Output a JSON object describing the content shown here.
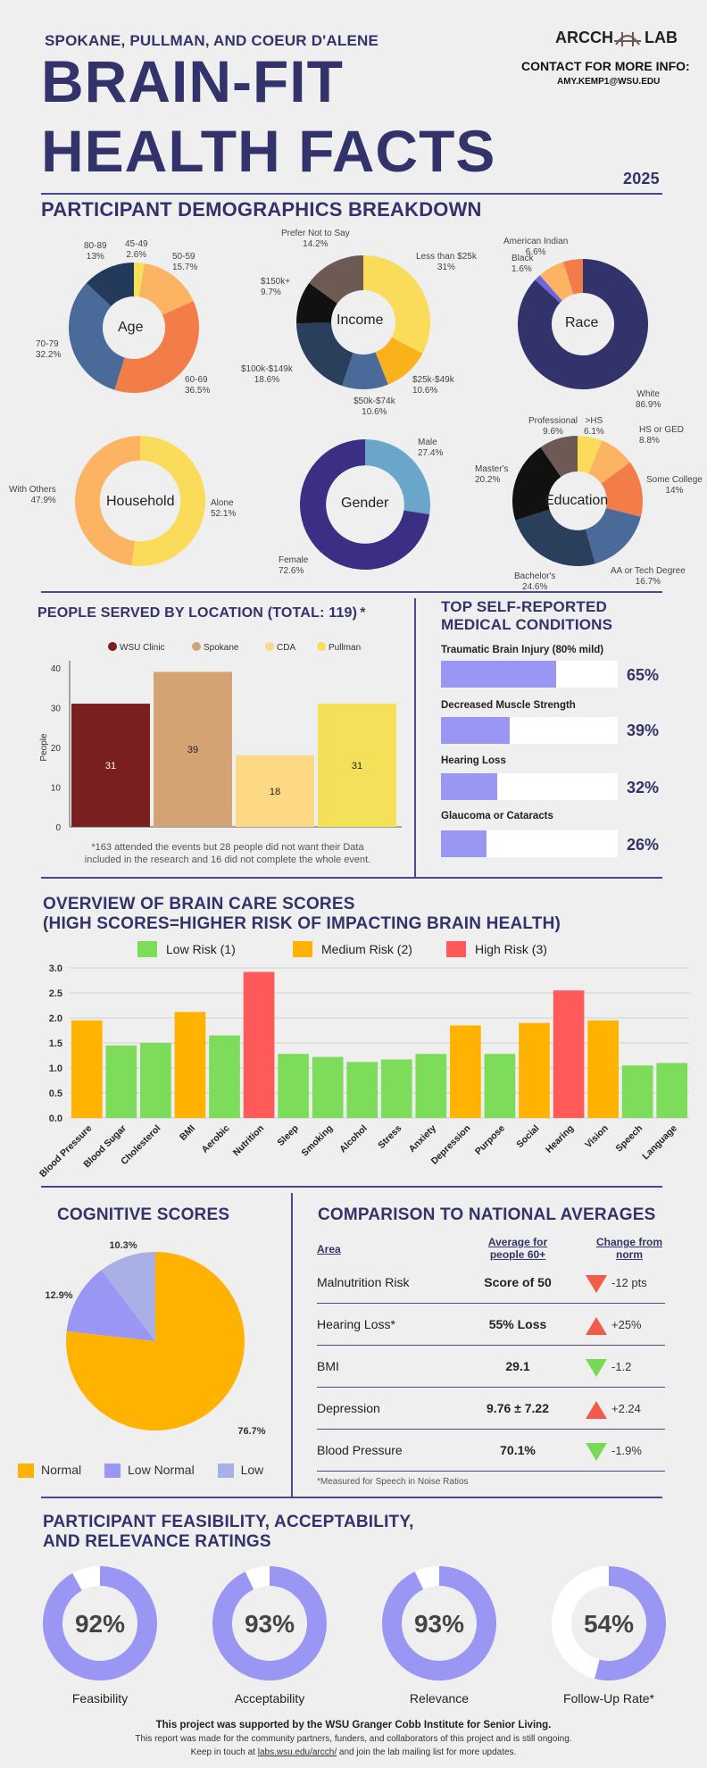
{
  "header": {
    "location": "SPOKANE, PULLMAN, AND COEUR D'ALENE",
    "title_line1": "BRAIN-FIT",
    "title_line2": "HEALTH FACTS",
    "year": "2025",
    "logo_left": "ARCCH",
    "logo_right": "LAB",
    "contact_label": "CONTACT FOR MORE INFO:",
    "contact_email": "AMY.KEMP1@WSU.EDU"
  },
  "demographics": {
    "title": "PARTICIPANT DEMOGRAPHICS BREAKDOWN",
    "age": {
      "center": "Age",
      "slices": [
        {
          "label": "45-49",
          "pct": "2.6%",
          "value": 2.6,
          "color": "#f5e05a"
        },
        {
          "label": "50-59",
          "pct": "15.7%",
          "value": 15.7,
          "color": "#fdb462"
        },
        {
          "label": "60-69",
          "pct": "36.5%",
          "value": 36.5,
          "color": "#f27d48"
        },
        {
          "label": "70-79",
          "pct": "32.2%",
          "value": 32.2,
          "color": "#4a6b99"
        },
        {
          "label": "80-89",
          "pct": "13%",
          "value": 13,
          "color": "#243a5a"
        }
      ]
    },
    "income": {
      "center": "Income",
      "slices": [
        {
          "label": "Less than $25k",
          "pct": "31%",
          "value": 31,
          "color": "#fbdc5a"
        },
        {
          "label": "$25k-$49k",
          "pct": "10.6%",
          "value": 10.6,
          "color": "#f9b21c"
        },
        {
          "label": "$50k-$74k",
          "pct": "10.6%",
          "value": 10.6,
          "color": "#4a6b99"
        },
        {
          "label": "$100k-$149k",
          "pct": "18.6%",
          "value": 18.6,
          "color": "#2a3f5c"
        },
        {
          "label": "$150k+",
          "pct": "9.7%",
          "value": 9.7,
          "color": "#111111"
        },
        {
          "label": "Prefer Not to Say",
          "pct": "14.2%",
          "value": 14.2,
          "color": "#6e5a55"
        }
      ]
    },
    "race": {
      "center": "Race",
      "slices": [
        {
          "label": "White",
          "pct": "86.9%",
          "value": 86.9,
          "color": "#33336b"
        },
        {
          "label": "Black",
          "pct": "1.6%",
          "value": 1.6,
          "color": "#6b66e0"
        },
        {
          "label": "American Indian",
          "pct": "6.6%",
          "value": 6.6,
          "color": "#fdb462"
        },
        {
          "label": "",
          "pct": "",
          "value": 4.9,
          "color": "#f27d48"
        }
      ]
    },
    "household": {
      "center": "Household",
      "slices": [
        {
          "label": "Alone",
          "pct": "52.1%",
          "value": 52.1,
          "color": "#fbdc5a"
        },
        {
          "label": "With Others",
          "pct": "47.9%",
          "value": 47.9,
          "color": "#fdb462"
        }
      ]
    },
    "gender": {
      "center": "Gender",
      "slices": [
        {
          "label": "Male",
          "pct": "27.4%",
          "value": 27.4,
          "color": "#6aa6c9"
        },
        {
          "label": "Female",
          "pct": "72.6%",
          "value": 72.6,
          "color": "#3a2f85"
        }
      ]
    },
    "education": {
      "center": "Education",
      "slices": [
        {
          "label": ">HS",
          "pct": "6.1%",
          "value": 6.1,
          "color": "#fbdc5a"
        },
        {
          "label": "HS or GED",
          "pct": "8.8%",
          "value": 8.8,
          "color": "#fdb462"
        },
        {
          "label": "Some College",
          "pct": "14%",
          "value": 14,
          "color": "#f27d48"
        },
        {
          "label": "AA or Tech Degree",
          "pct": "16.7%",
          "value": 16.7,
          "color": "#4a6b99"
        },
        {
          "label": "Bachelor's",
          "pct": "24.6%",
          "value": 24.6,
          "color": "#2a3f5c"
        },
        {
          "label": "Master's",
          "pct": "20.2%",
          "value": 20.2,
          "color": "#111111"
        },
        {
          "label": "Professional",
          "pct": "9.6%",
          "value": 9.6,
          "color": "#6e5a55"
        }
      ]
    }
  },
  "location_chart": {
    "title": "PEOPLE SERVED BY LOCATION (TOTAL: 119)",
    "title_mark": "*",
    "note_line1": "*163 attended the events but 28 people did not want their Data",
    "note_line2": "included in the research and 16 did not complete the whole event."
  },
  "conditions": {
    "title_line1": "TOP SELF-REPORTED",
    "title_line2": "MEDICAL CONDITIONS",
    "items": [
      {
        "name": "Traumatic Brain Injury (80% mild)",
        "pct": "65%",
        "value": 0.65
      },
      {
        "name": "Decreased Muscle Strength",
        "pct": "39%",
        "value": 0.39
      },
      {
        "name": "Hearing Loss",
        "pct": "32%",
        "value": 0.32
      },
      {
        "name": "Glaucoma or Cataracts",
        "pct": "26%",
        "value": 0.26
      }
    ]
  },
  "brain_care": {
    "title_line1": "OVERVIEW OF BRAIN CARE SCORES",
    "title_line2": "(HIGH SCORES=HIGHER RISK OF IMPACTING BRAIN HEALTH)"
  },
  "cognitive": {
    "title": "COGNITIVE SCORES",
    "legend": [
      "Normal",
      "Low Normal",
      "Low"
    ]
  },
  "comparison": {
    "title": "COMPARISON TO NATIONAL AVERAGES",
    "col_area": "Area",
    "col_avg_line1": "Average for",
    "col_avg_line2": "people 60+",
    "col_change_line1": "Change from",
    "col_change_line2": "norm",
    "rows": [
      {
        "area": "Malnutrition Risk",
        "value": "Score of 50",
        "change": "-12 pts",
        "dir": "down",
        "color": "#f25a4a"
      },
      {
        "area": "Hearing Loss*",
        "value": "55% Loss",
        "change": "+25%",
        "dir": "up",
        "color": "#f25a4a"
      },
      {
        "area": "BMI",
        "value": "29.1",
        "change": "-1.2",
        "dir": "down",
        "color": "#78d957"
      },
      {
        "area": "Depression",
        "value": "9.76 ± 7.22",
        "change": "+2.24",
        "dir": "up",
        "color": "#f25a4a"
      },
      {
        "area": "Blood Pressure",
        "value": "70.1%",
        "change": "-1.9%",
        "dir": "down",
        "color": "#78d957"
      }
    ],
    "footnote": "*Measured for Speech in Noise Ratios"
  },
  "feasibility": {
    "title_line1": "PARTICIPANT FEASIBILITY, ACCEPTABILITY,",
    "title_line2": "AND RELEVANCE RATINGS",
    "rings": [
      {
        "label": "Feasibility",
        "pct": "92%",
        "value": 0.92
      },
      {
        "label": "Acceptability",
        "pct": "93%",
        "value": 0.93
      },
      {
        "label": "Relevance",
        "pct": "93%",
        "value": 0.93
      },
      {
        "label": "Follow-Up Rate*",
        "pct": "54%",
        "value": 0.54
      }
    ]
  },
  "footer": {
    "line1": "This project was supported by the WSU Granger Cobb Institute for Senior Living.",
    "line2": "This report was made for the community partners,  funders, and collaborators of this project and is still ongoing.",
    "line3_pre": "Keep in touch at ",
    "line3_link": "labs.wsu.edu/arcch/",
    "line3_post": " and join the lab mailing list for more updates."
  },
  "chart_data": [
    {
      "type": "bar",
      "title": "PEOPLE SERVED BY LOCATION (TOTAL: 119)",
      "categories": [
        "WSU Clinic",
        "Spokane",
        "CDA",
        "Pullman"
      ],
      "values": [
        31,
        39,
        18,
        31
      ],
      "colors": [
        "#7a1f1f",
        "#d4a373",
        "#fdd885",
        "#f5e05a"
      ],
      "ylabel": "People",
      "ylim": [
        0,
        40
      ],
      "yticks": [
        0,
        10,
        20,
        30,
        40
      ],
      "legend": "top"
    },
    {
      "type": "bar",
      "title": "OVERVIEW OF BRAIN CARE SCORES",
      "categories": [
        "Blood Pressure",
        "Blood Sugar",
        "Cholesterol",
        "BMI",
        "Aerobic",
        "Nutrition",
        "Sleep",
        "Smoking",
        "Alcohol",
        "Stress",
        "Anxiety",
        "Depression",
        "Purpose",
        "Social",
        "Hearing",
        "Vision",
        "Speech",
        "Language"
      ],
      "values": [
        1.95,
        1.45,
        1.5,
        2.12,
        1.65,
        2.92,
        1.28,
        1.22,
        1.12,
        1.17,
        1.28,
        1.85,
        1.28,
        1.9,
        2.55,
        1.95,
        1.05,
        1.1
      ],
      "risk": [
        2,
        1,
        1,
        2,
        1,
        3,
        1,
        1,
        1,
        1,
        1,
        2,
        1,
        2,
        3,
        2,
        1,
        1
      ],
      "legend_items": [
        {
          "name": "Low Risk (1)",
          "color": "#7ddc5a"
        },
        {
          "name": "Medium Risk (2)",
          "color": "#ffb300"
        },
        {
          "name": "High Risk (3)",
          "color": "#ff5a5a"
        }
      ],
      "ylim": [
        0,
        3
      ],
      "yticks": [
        "0.0",
        "0.5",
        "1.0",
        "1.5",
        "2.0",
        "2.5",
        "3.0"
      ],
      "grid": true,
      "legend": "top"
    },
    {
      "type": "pie",
      "title": "COGNITIVE SCORES",
      "labels": [
        "Normal",
        "Low Normal",
        "Low"
      ],
      "values": [
        76.7,
        12.9,
        10.3
      ],
      "pct_labels": [
        "76.7%",
        "12.9%",
        "10.3%"
      ],
      "colors": [
        "#ffb300",
        "#9a96f3",
        "#a8b0e6"
      ]
    }
  ]
}
